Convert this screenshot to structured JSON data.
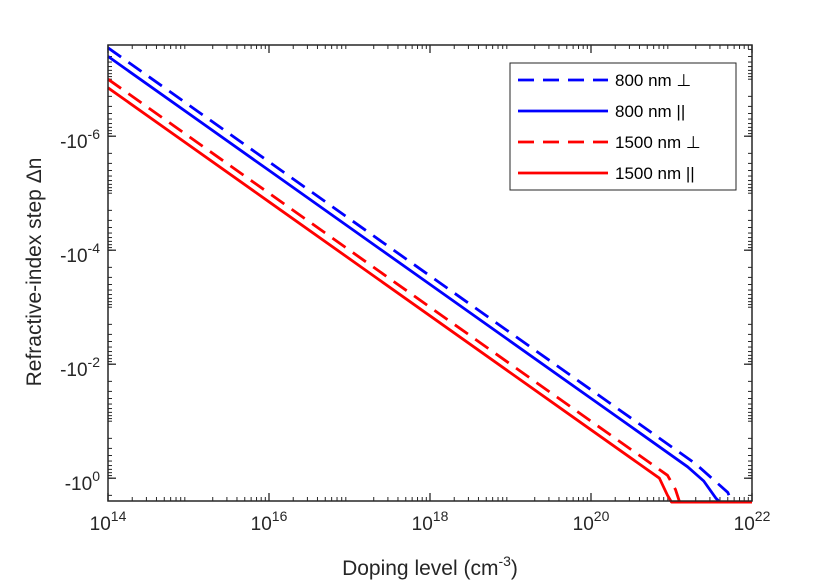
{
  "chart_data": {
    "type": "line",
    "xlabel": "Doping level (cm",
    "xlabel_sup": "-3",
    "xlabel_close": ")",
    "ylabel": "Refractive-index step Δn",
    "xscale": "log",
    "yscale": "log",
    "xlim_exponent": [
      14,
      22
    ],
    "ylim_exponent": [
      -7.6,
      0.4
    ],
    "x_ticks": [
      {
        "base": "10",
        "exp": "14",
        "value": 14
      },
      {
        "base": "10",
        "exp": "16",
        "value": 16
      },
      {
        "base": "10",
        "exp": "18",
        "value": 18
      },
      {
        "base": "10",
        "exp": "20",
        "value": 20
      },
      {
        "base": "10",
        "exp": "22",
        "value": 22
      }
    ],
    "y_ticks": [
      {
        "base": "-10",
        "exp": "-6",
        "value": -6
      },
      {
        "base": "-10",
        "exp": "-4",
        "value": -4
      },
      {
        "base": "-10",
        "exp": "-2",
        "value": -2
      },
      {
        "base": "-10",
        "exp": "0",
        "value": 0
      }
    ],
    "legend_position": "top-right",
    "series": [
      {
        "name": "800 nm ⊥",
        "color": "#0000ff",
        "dash": "dashed",
        "x": [
          14,
          16,
          18,
          20,
          20.5,
          21.3,
          21.5,
          21.7,
          21.75,
          22
        ],
        "y": [
          -7.55,
          -5.55,
          -3.55,
          -1.55,
          -1.05,
          -0.25,
          0.0,
          0.25,
          0.42,
          0.42
        ]
      },
      {
        "name": "800 nm  ||",
        "color": "#0000ff",
        "dash": "solid",
        "x": [
          14,
          16,
          18,
          20,
          20.5,
          21.2,
          21.4,
          21.55,
          21.6,
          22
        ],
        "y": [
          -7.4,
          -5.4,
          -3.4,
          -1.4,
          -0.9,
          -0.2,
          0.05,
          0.35,
          0.42,
          0.42
        ]
      },
      {
        "name": "1500 nm ⊥",
        "color": "#ff0000",
        "dash": "dashed",
        "x": [
          14,
          16,
          18,
          20,
          20.5,
          20.95,
          21.05,
          21.1,
          22
        ],
        "y": [
          -7.0,
          -5.0,
          -3.0,
          -1.0,
          -0.5,
          -0.05,
          0.2,
          0.42,
          0.42
        ]
      },
      {
        "name": "1500 nm  ||",
        "color": "#ff0000",
        "dash": "solid",
        "x": [
          14,
          16,
          18,
          20,
          20.5,
          20.85,
          20.95,
          21.0,
          22
        ],
        "y": [
          -6.85,
          -4.85,
          -2.85,
          -0.85,
          -0.35,
          0.0,
          0.3,
          0.42,
          0.42
        ]
      }
    ]
  }
}
